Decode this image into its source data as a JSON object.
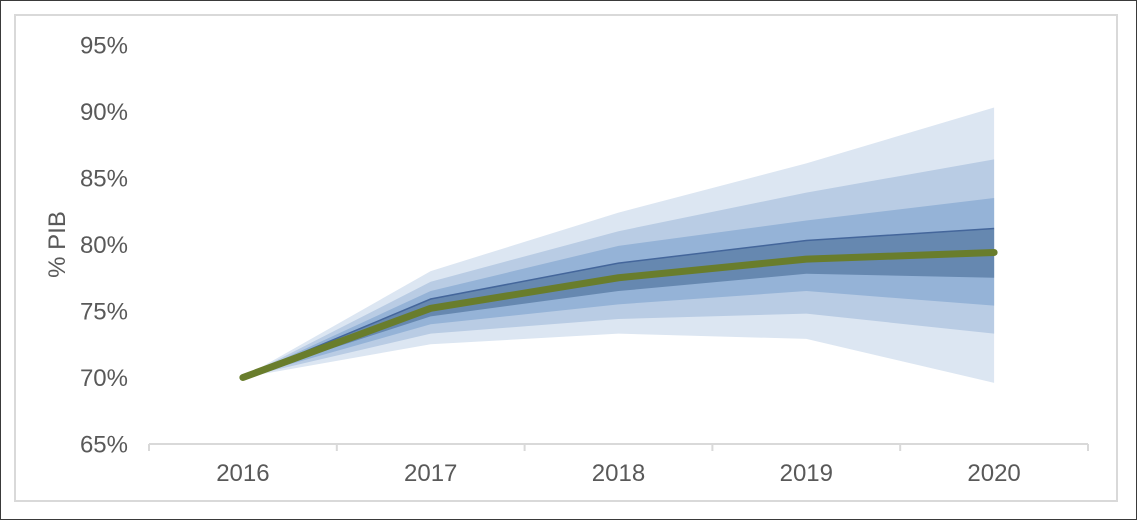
{
  "frame": {
    "border_color": "#D9D9D9",
    "background": "#FFFFFF"
  },
  "axis": {
    "line_color": "#D9D9D9",
    "tick_label_color": "#595959",
    "y_axis_title": "% PIB"
  },
  "chart_data": {
    "type": "area",
    "subtype": "fan-chart",
    "title": "",
    "xlabel": "",
    "ylabel": "% PIB",
    "categories": [
      "2016",
      "2017",
      "2018",
      "2019",
      "2020"
    ],
    "ylim": [
      65,
      95
    ],
    "grid": false,
    "legend": false,
    "y_ticks": [
      {
        "value": 95,
        "label": "95%"
      },
      {
        "value": 90,
        "label": "90%"
      },
      {
        "value": 85,
        "label": "85%"
      },
      {
        "value": 80,
        "label": "80%"
      },
      {
        "value": 75,
        "label": "75%"
      },
      {
        "value": 70,
        "label": "70%"
      },
      {
        "value": 65,
        "label": "65%"
      }
    ],
    "central_line": {
      "name": "central projection",
      "color": "#697D2C",
      "values": [
        70.0,
        75.2,
        77.5,
        78.9,
        79.4
      ]
    },
    "bands_order": "outermost-first",
    "bands": [
      {
        "name": "outer band",
        "color": "#DCE6F2",
        "lower": [
          70.0,
          72.5,
          73.3,
          72.9,
          69.6
        ],
        "upper": [
          70.0,
          78.0,
          82.4,
          86.1,
          90.3
        ]
      },
      {
        "name": "light band",
        "color": "#B9CCE4",
        "lower": [
          70.0,
          73.3,
          74.4,
          74.8,
          73.3
        ],
        "upper": [
          70.0,
          77.2,
          81.0,
          83.9,
          86.4
        ]
      },
      {
        "name": "medium band",
        "color": "#95B3D7",
        "lower": [
          70.0,
          74.0,
          75.5,
          76.5,
          75.4
        ],
        "upper": [
          70.0,
          76.5,
          79.9,
          81.8,
          83.5
        ]
      },
      {
        "name": "inner band",
        "color": "#6688B0",
        "top_edge_color": "#44669B",
        "lower": [
          70.0,
          74.6,
          76.5,
          77.8,
          77.5
        ],
        "upper": [
          70.0,
          75.9,
          78.6,
          80.3,
          81.2
        ]
      }
    ]
  }
}
